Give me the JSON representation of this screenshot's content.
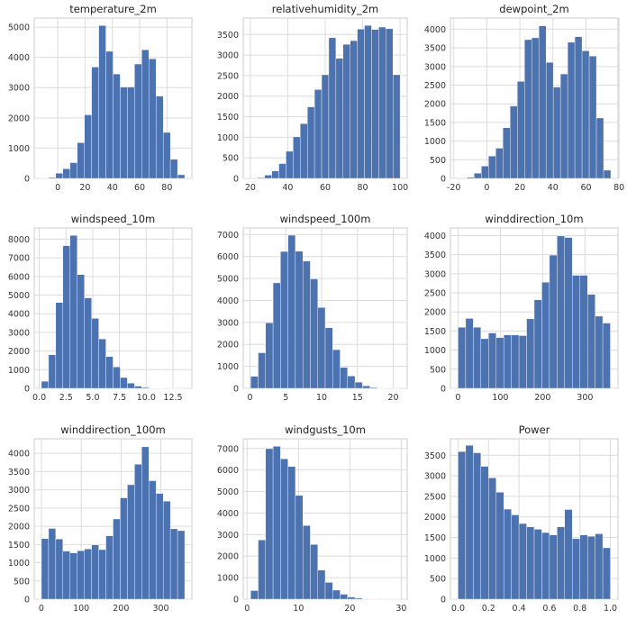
{
  "chart_data": [
    {
      "type": "histogram",
      "title": "temperature_2m",
      "color": "#4c72b0",
      "grid": true,
      "bins": [
        -12,
        -6.75,
        -1.5,
        3.75,
        9,
        14.25,
        19.5,
        24.75,
        30,
        35.25,
        40.5,
        45.75,
        51,
        56.25,
        61.5,
        66.75,
        72,
        77.25,
        82.5,
        87.75,
        93
      ],
      "values": [
        10,
        30,
        170,
        320,
        520,
        1180,
        2100,
        3680,
        5050,
        4200,
        3450,
        3020,
        3020,
        3780,
        4250,
        3950,
        2720,
        1520,
        630,
        120
      ],
      "xlim": [
        -17.25,
        98.25
      ],
      "xticks": [
        0,
        20,
        40,
        60,
        80
      ],
      "ylim": [
        0,
        5300
      ],
      "yticks": [
        0,
        1000,
        2000,
        3000,
        4000,
        5000
      ]
    },
    {
      "type": "histogram",
      "title": "relativehumidity_2m",
      "color": "#4c72b0",
      "grid": true,
      "bins": [
        23.8,
        27.61,
        31.42,
        35.23,
        39.04,
        42.85,
        46.66,
        50.47,
        54.28,
        58.09,
        61.9,
        65.71,
        69.52,
        73.33,
        77.14,
        80.95,
        84.76,
        88.57,
        92.38,
        96.19,
        100
      ],
      "values": [
        20,
        80,
        180,
        360,
        660,
        1010,
        1330,
        1740,
        2160,
        2520,
        3420,
        2920,
        3260,
        3350,
        3630,
        3720,
        3620,
        3680,
        3640,
        2520
      ],
      "xlim": [
        16.2,
        103.8
      ],
      "xticks": [
        20,
        40,
        60,
        80,
        100
      ],
      "ylim": [
        0,
        3900
      ],
      "yticks": [
        0,
        500,
        1000,
        1500,
        2000,
        2500,
        3000,
        3500
      ]
    },
    {
      "type": "histogram",
      "title": "dewpoint_2m",
      "color": "#4c72b0",
      "grid": true,
      "bins": [
        -12,
        -7.65,
        -3.3,
        1.05,
        5.4,
        9.75,
        14.1,
        18.45,
        22.8,
        27.15,
        31.5,
        35.85,
        40.2,
        44.55,
        48.9,
        53.25,
        57.6,
        61.95,
        66.3,
        70.65,
        75
      ],
      "values": [
        30,
        140,
        330,
        600,
        810,
        1360,
        1940,
        2600,
        3720,
        3770,
        4090,
        3110,
        2450,
        2800,
        3650,
        3800,
        3420,
        3280,
        1620,
        220
      ],
      "xlim": [
        -22,
        79.35
      ],
      "xticks": [
        -20,
        0,
        20,
        40,
        60,
        80
      ],
      "ylim": [
        0,
        4300
      ],
      "yticks": [
        0,
        500,
        1000,
        1500,
        2000,
        2500,
        3000,
        3500,
        4000
      ]
    },
    {
      "type": "histogram",
      "title": "windspeed_10m",
      "color": "#4c72b0",
      "grid": true,
      "bins": [
        0.2,
        0.87,
        1.54,
        2.21,
        2.88,
        3.55,
        4.22,
        4.89,
        5.56,
        6.23,
        6.9,
        7.57,
        8.24,
        8.91,
        9.58,
        10.25,
        10.92,
        11.59,
        12.26,
        12.93,
        13.6
      ],
      "values": [
        380,
        1800,
        4600,
        7650,
        8200,
        6100,
        4850,
        3750,
        2650,
        1700,
        1150,
        580,
        280,
        120,
        50,
        20,
        10,
        5,
        2,
        1
      ],
      "xlim": [
        -0.47,
        14.27
      ],
      "xticks": [
        {
          "value": 0,
          "label": "0.0"
        },
        2.5,
        {
          "value": 5,
          "label": "5.0"
        },
        7.5,
        {
          "value": 10,
          "label": "10.0"
        },
        12.5
      ],
      "ylim": [
        0,
        8600
      ],
      "yticks": [
        0,
        1000,
        2000,
        3000,
        4000,
        5000,
        6000,
        7000,
        8000
      ]
    },
    {
      "type": "histogram",
      "title": "windspeed_100m",
      "color": "#4c72b0",
      "grid": true,
      "bins": [
        0.1,
        1.14,
        2.18,
        3.22,
        4.26,
        5.3,
        6.34,
        7.38,
        8.42,
        9.46,
        10.5,
        11.54,
        12.58,
        13.62,
        14.66,
        15.7,
        16.74,
        17.78,
        18.82,
        19.86,
        20.9
      ],
      "values": [
        550,
        1620,
        2980,
        4800,
        6230,
        6970,
        6240,
        5790,
        4980,
        3680,
        2760,
        1760,
        950,
        560,
        280,
        110,
        40,
        15,
        5,
        2
      ],
      "xlim": [
        -0.94,
        21.94
      ],
      "xticks": [
        0,
        5,
        10,
        15,
        20
      ],
      "ylim": [
        0,
        7300
      ],
      "yticks": [
        0,
        1000,
        2000,
        3000,
        4000,
        5000,
        6000,
        7000
      ]
    },
    {
      "type": "histogram",
      "title": "winddirection_10m",
      "color": "#4c72b0",
      "grid": true,
      "bins": [
        0,
        18,
        36,
        54,
        72,
        90,
        108,
        126,
        144,
        162,
        180,
        198,
        216,
        234,
        252,
        270,
        288,
        306,
        324,
        342,
        360
      ],
      "values": [
        1600,
        1830,
        1600,
        1300,
        1450,
        1330,
        1400,
        1400,
        1380,
        1820,
        2320,
        2780,
        3490,
        3990,
        3950,
        2960,
        2960,
        2460,
        1890,
        1710
      ],
      "xlim": [
        -18,
        378
      ],
      "xticks": [
        0,
        100,
        200,
        300
      ],
      "ylim": [
        0,
        4200
      ],
      "yticks": [
        0,
        500,
        1000,
        1500,
        2000,
        2500,
        3000,
        3500,
        4000
      ]
    },
    {
      "type": "histogram",
      "title": "winddirection_100m",
      "color": "#4c72b0",
      "grid": true,
      "bins": [
        0,
        18,
        36,
        54,
        72,
        90,
        108,
        126,
        144,
        162,
        180,
        198,
        216,
        234,
        252,
        270,
        288,
        306,
        324,
        342,
        360
      ],
      "values": [
        1660,
        1940,
        1650,
        1320,
        1270,
        1330,
        1380,
        1490,
        1360,
        1740,
        2200,
        2780,
        3140,
        3700,
        4180,
        3250,
        2900,
        2690,
        1930,
        1880
      ],
      "xlim": [
        -18,
        378
      ],
      "xticks": [
        0,
        100,
        200,
        300
      ],
      "ylim": [
        0,
        4400
      ],
      "yticks": [
        0,
        500,
        1000,
        1500,
        2000,
        2500,
        3000,
        3500,
        4000
      ]
    },
    {
      "type": "histogram",
      "title": "windgusts_10m",
      "color": "#4c72b0",
      "grid": true,
      "bins": [
        0.7,
        2.15,
        3.6,
        5.05,
        6.5,
        7.95,
        9.4,
        10.85,
        12.3,
        13.75,
        15.2,
        16.65,
        18.1,
        19.55,
        21,
        22.45,
        23.9,
        25.35,
        26.8,
        28.25,
        29.7
      ],
      "values": [
        400,
        2750,
        6990,
        7100,
        6520,
        6160,
        4820,
        3420,
        2540,
        1350,
        780,
        420,
        230,
        100,
        50,
        20,
        10,
        5,
        2,
        1
      ],
      "xlim": [
        -0.75,
        31.15
      ],
      "xticks": [
        0,
        10,
        20,
        30
      ],
      "ylim": [
        0,
        7450
      ],
      "yticks": [
        0,
        1000,
        2000,
        3000,
        4000,
        5000,
        6000,
        7000
      ]
    },
    {
      "type": "histogram",
      "title": "Power",
      "color": "#4c72b0",
      "grid": true,
      "bins": [
        0,
        0.05,
        0.1,
        0.15,
        0.2,
        0.25,
        0.3,
        0.35,
        0.4,
        0.45,
        0.5,
        0.55,
        0.6,
        0.65,
        0.7,
        0.75,
        0.8,
        0.85,
        0.9,
        0.95,
        1
      ],
      "values": [
        3590,
        3740,
        3560,
        3230,
        2950,
        2600,
        2190,
        2050,
        1840,
        1760,
        1700,
        1620,
        1560,
        1760,
        2180,
        1470,
        1560,
        1530,
        1590,
        1250
      ],
      "xlim": [
        -0.05,
        1.05
      ],
      "xticks": [
        {
          "value": 0,
          "label": "0.0"
        },
        0.2,
        0.4,
        0.6,
        0.8,
        {
          "value": 1,
          "label": "1.0"
        }
      ],
      "ylim": [
        0,
        3900
      ],
      "yticks": [
        0,
        500,
        1000,
        1500,
        2000,
        2500,
        3000,
        3500
      ]
    }
  ]
}
